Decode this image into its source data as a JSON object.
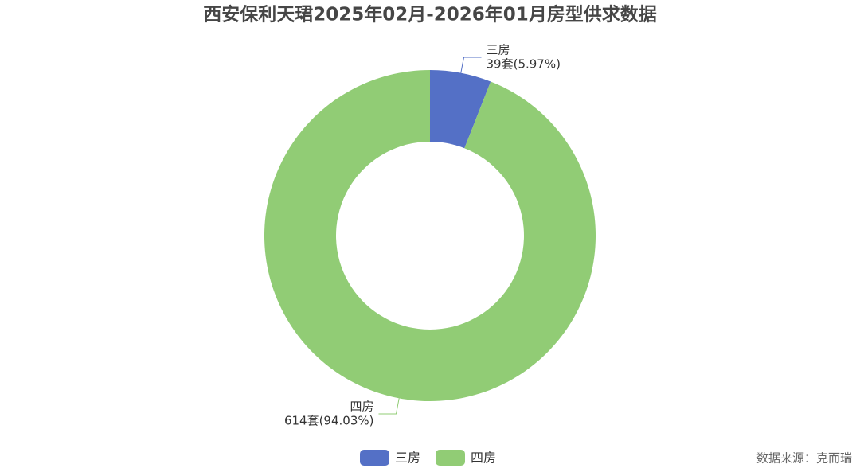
{
  "chart_data": {
    "type": "donut",
    "title": "西安保利天珺2025年02月-2026年01月房型供求数据",
    "categories": [
      "三房",
      "四房"
    ],
    "values": [
      39,
      614
    ],
    "value_labels": [
      "39套(5.97%)",
      "614套(94.03%)"
    ],
    "colors": [
      "#5470c6",
      "#91cc75"
    ],
    "source": "数据来源：克而瑞"
  }
}
